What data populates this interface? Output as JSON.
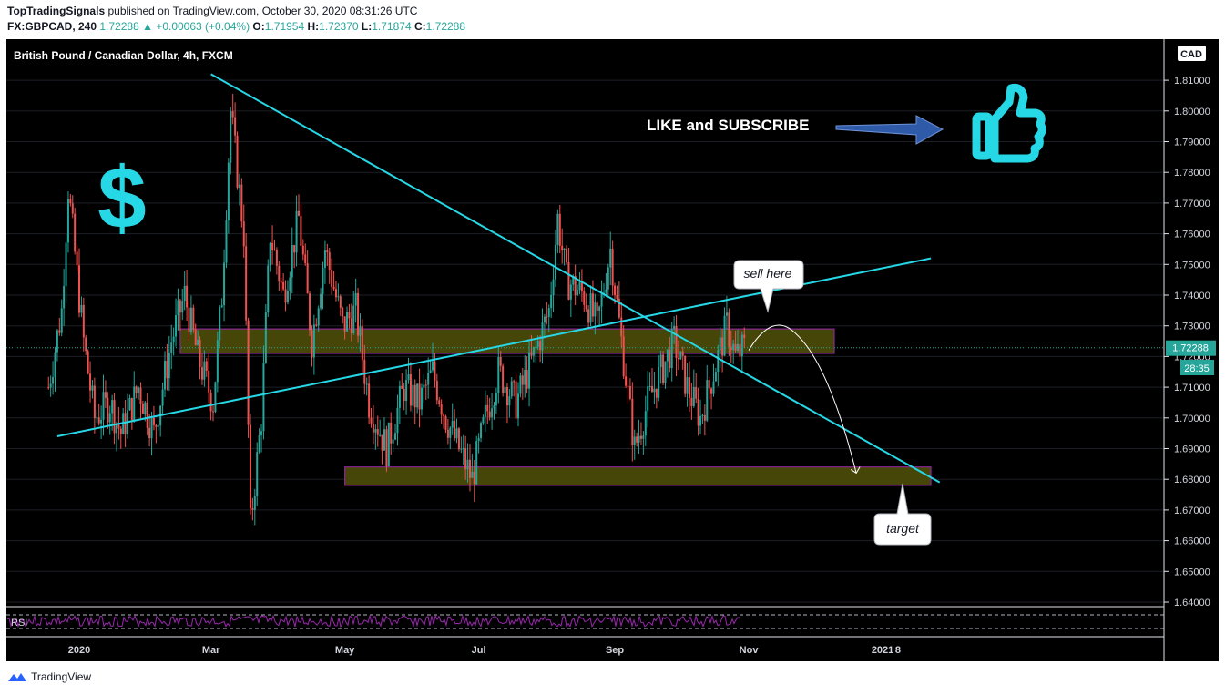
{
  "header": {
    "author": "TopTradingSignals",
    "published_text": "published on TradingView.com, October 30, 2020 08:31:26 UTC",
    "symbol": "FX:GBPCAD, 240",
    "last": "1.72288",
    "change": "▲ +0.00063 (+0.04%)",
    "o_label": "O:",
    "o_value": "1.71954",
    "h_label": "H:",
    "h_value": "1.72370",
    "l_label": "L:",
    "l_value": "1.71874",
    "c_label": "C:",
    "c_value": "1.72288"
  },
  "chart_title": "British Pound / Canadian Dollar, 4h, FXCM",
  "currency_badge": "CAD",
  "price_label": "1.72288",
  "countdown": "28:35",
  "rsi_label": "RSI",
  "brand": "TradingView",
  "annotations": {
    "like_subscribe": "LIKE and SUBSCRIBE",
    "dollar": "$",
    "sell_here": "sell here",
    "target": "target"
  },
  "colors": {
    "background": "#000000",
    "up": "#26a69a",
    "down": "#ef5350",
    "trendline": "#26d7e6",
    "zone_fill": "#4a4a08",
    "zone_border": "#9c27b0",
    "rsi": "#9c27b0"
  },
  "chart_data": {
    "type": "candlestick",
    "x_tick_labels": [
      "2020",
      "Mar",
      "May",
      "Jul",
      "Sep",
      "Nov",
      "2021",
      "8"
    ],
    "y_tick_labels": [
      "1.64000",
      "1.65000",
      "1.66000",
      "1.67000",
      "1.68000",
      "1.69000",
      "1.70000",
      "1.71000",
      "1.72000",
      "1.73000",
      "1.74000",
      "1.75000",
      "1.76000",
      "1.77000",
      "1.78000",
      "1.79000",
      "1.80000",
      "1.81000"
    ],
    "ylim": [
      1.64,
      1.82
    ],
    "price_path": [
      [
        "2019-12-18",
        1.71
      ],
      [
        "2019-12-24",
        1.735
      ],
      [
        "2019-12-27",
        1.775
      ],
      [
        "2020-01-03",
        1.725
      ],
      [
        "2020-01-08",
        1.7
      ],
      [
        "2020-01-15",
        1.705
      ],
      [
        "2020-01-20",
        1.695
      ],
      [
        "2020-01-28",
        1.71
      ],
      [
        "2020-02-04",
        1.695
      ],
      [
        "2020-02-12",
        1.725
      ],
      [
        "2020-02-18",
        1.74
      ],
      [
        "2020-02-24",
        1.72
      ],
      [
        "2020-03-02",
        1.705
      ],
      [
        "2020-03-06",
        1.74
      ],
      [
        "2020-03-10",
        1.8
      ],
      [
        "2020-03-16",
        1.76
      ],
      [
        "2020-03-19",
        1.665
      ],
      [
        "2020-03-24",
        1.7
      ],
      [
        "2020-03-28",
        1.76
      ],
      [
        "2020-04-03",
        1.74
      ],
      [
        "2020-04-10",
        1.765
      ],
      [
        "2020-04-16",
        1.725
      ],
      [
        "2020-04-22",
        1.755
      ],
      [
        "2020-04-30",
        1.73
      ],
      [
        "2020-05-06",
        1.735
      ],
      [
        "2020-05-12",
        1.705
      ],
      [
        "2020-05-20",
        1.69
      ],
      [
        "2020-05-28",
        1.71
      ],
      [
        "2020-06-04",
        1.705
      ],
      [
        "2020-06-10",
        1.715
      ],
      [
        "2020-06-16",
        1.7
      ],
      [
        "2020-06-22",
        1.69
      ],
      [
        "2020-06-28",
        1.68
      ],
      [
        "2020-07-04",
        1.7
      ],
      [
        "2020-07-10",
        1.715
      ],
      [
        "2020-07-18",
        1.705
      ],
      [
        "2020-07-26",
        1.72
      ],
      [
        "2020-08-02",
        1.735
      ],
      [
        "2020-08-06",
        1.765
      ],
      [
        "2020-08-10",
        1.745
      ],
      [
        "2020-08-18",
        1.74
      ],
      [
        "2020-08-24",
        1.73
      ],
      [
        "2020-08-30",
        1.755
      ],
      [
        "2020-09-04",
        1.725
      ],
      [
        "2020-09-10",
        1.69
      ],
      [
        "2020-09-16",
        1.705
      ],
      [
        "2020-09-22",
        1.715
      ],
      [
        "2020-09-28",
        1.725
      ],
      [
        "2020-10-04",
        1.71
      ],
      [
        "2020-10-10",
        1.7
      ],
      [
        "2020-10-16",
        1.715
      ],
      [
        "2020-10-22",
        1.73
      ],
      [
        "2020-10-26",
        1.72
      ],
      [
        "2020-10-30",
        1.7229
      ]
    ],
    "current_price": 1.72288,
    "trendlines": [
      {
        "name": "descending",
        "from": [
          "2020-03-01",
          1.812
        ],
        "to": [
          "2021-01-27",
          1.679
        ]
      },
      {
        "name": "ascending",
        "from": [
          "2019-12-22",
          1.694
        ],
        "to": [
          "2021-01-23",
          1.752
        ]
      }
    ],
    "zones": [
      {
        "name": "resistance",
        "from": "2020-02-16",
        "to": "2020-12-10",
        "low": 1.721,
        "high": 1.729
      },
      {
        "name": "support",
        "from": "2020-05-01",
        "to": "2021-01-23",
        "low": 1.678,
        "high": 1.684
      }
    ],
    "projection": {
      "from": [
        "2020-11-01",
        1.722
      ],
      "peak": [
        "2020-11-12",
        1.729
      ],
      "to": [
        "2020-12-20",
        1.682
      ]
    }
  }
}
